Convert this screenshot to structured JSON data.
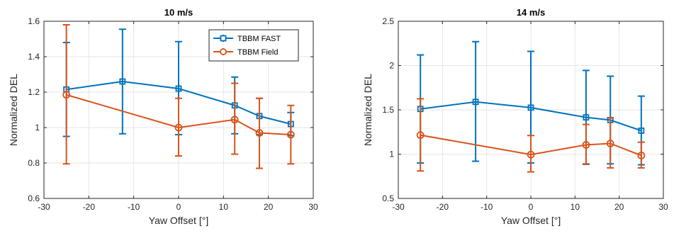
{
  "chart_data": [
    {
      "type": "line",
      "title": "10 m/s",
      "xlabel": "Yaw Offset [°]",
      "ylabel": "Normalized DEL",
      "xlim": [
        -30,
        30
      ],
      "ylim": [
        0.6,
        1.6
      ],
      "xticks": [
        "-30",
        "-20",
        "-10",
        "0",
        "10",
        "20",
        "30"
      ],
      "yticks": [
        "0.6",
        "0.8",
        "1",
        "1.2",
        "1.4",
        "1.6"
      ],
      "grid": true,
      "legend": "top-right",
      "series": [
        {
          "name": "TBBM FAST",
          "color": "#0072BD",
          "marker": "square",
          "x": [
            -25,
            -12.5,
            0,
            12.5,
            18,
            25
          ],
          "y": [
            1.215,
            1.26,
            1.22,
            1.125,
            1.065,
            1.02
          ],
          "err_low": [
            0.95,
            0.965,
            0.96,
            0.965,
            0.96,
            0.955
          ],
          "err_high": [
            1.48,
            1.555,
            1.485,
            1.285,
            1.165,
            1.085
          ]
        },
        {
          "name": "TBBM Field",
          "color": "#D95319",
          "marker": "circle",
          "x": [
            -25,
            0,
            12.5,
            18,
            25
          ],
          "y": [
            1.185,
            1.0,
            1.045,
            0.97,
            0.96
          ],
          "err_low": [
            0.795,
            0.84,
            0.85,
            0.77,
            0.795
          ],
          "err_high": [
            1.58,
            1.165,
            1.25,
            1.165,
            1.125
          ]
        }
      ]
    },
    {
      "type": "line",
      "title": "14 m/s",
      "xlabel": "Yaw Offset [°]",
      "ylabel": "Normalized DEL",
      "xlim": [
        -30,
        30
      ],
      "ylim": [
        0.5,
        2.5
      ],
      "xticks": [
        "-30",
        "-20",
        "-10",
        "0",
        "10",
        "20",
        "30"
      ],
      "yticks": [
        "0.5",
        "1",
        "1.5",
        "2",
        "2.5"
      ],
      "grid": true,
      "series": [
        {
          "name": "TBBM FAST",
          "color": "#0072BD",
          "marker": "square",
          "x": [
            -25,
            -12.5,
            0,
            12.5,
            18,
            25
          ],
          "y": [
            1.51,
            1.59,
            1.525,
            1.415,
            1.385,
            1.265
          ],
          "err_low": [
            0.9,
            0.92,
            0.9,
            0.885,
            0.89,
            0.88
          ],
          "err_high": [
            2.12,
            2.27,
            2.16,
            1.945,
            1.88,
            1.655
          ]
        },
        {
          "name": "TBBM Field",
          "color": "#D95319",
          "marker": "circle",
          "x": [
            -25,
            0,
            12.5,
            18,
            25
          ],
          "y": [
            1.215,
            0.995,
            1.105,
            1.12,
            0.985
          ],
          "err_low": [
            0.81,
            0.8,
            0.89,
            0.845,
            0.845
          ],
          "err_high": [
            1.625,
            1.21,
            1.335,
            1.41,
            1.135
          ]
        }
      ]
    }
  ]
}
